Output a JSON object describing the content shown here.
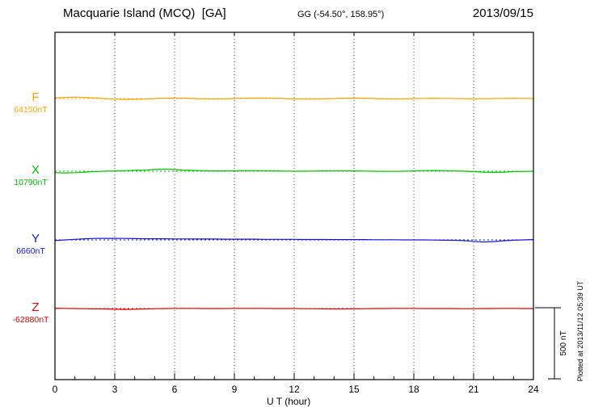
{
  "header": {
    "title": "Macquarie Island (MCQ)  [GA]",
    "coords": "GG (-54.50°, 158.95°)",
    "date": "2013/09/15"
  },
  "axis": {
    "xlabel": "U T (hour)"
  },
  "scale_bar": {
    "label": "500 nT",
    "span_nT": 500
  },
  "footer_note": "Plotted at 2013/11/12 05:39 UT",
  "chart_data": {
    "type": "line",
    "title": "Macquarie Island (MCQ) [GA] magnetogram 2013/09/15",
    "xlabel": "U T (hour)",
    "x_ticks": [
      0,
      3,
      6,
      9,
      12,
      15,
      18,
      21,
      24
    ],
    "x_range": [
      0,
      24
    ],
    "x_step_hours": 0.5,
    "scale_bar_nT": 500,
    "grid": "vertical-dotted",
    "legend_position": "left-of-traces",
    "series": [
      {
        "name": "F",
        "baseline_label": "64150nT",
        "baseline_nT": 64150,
        "color": "#FFA500",
        "deviation_nT": [
          5,
          8,
          10,
          8,
          4,
          0,
          -4,
          -6,
          -5,
          -3,
          0,
          2,
          3,
          2,
          0,
          -2,
          -3,
          -2,
          0,
          2,
          3,
          3,
          2,
          0,
          -2,
          -3,
          -3,
          -2,
          0,
          2,
          3,
          2,
          0,
          -2,
          -3,
          -2,
          0,
          1,
          2,
          1,
          0,
          -1,
          -2,
          -1,
          0,
          1,
          2,
          1,
          0
        ]
      },
      {
        "name": "X",
        "baseline_label": "10790nT",
        "baseline_nT": 10790,
        "color": "#00C000",
        "deviation_nT": [
          -10,
          -12,
          -10,
          -6,
          -2,
          0,
          2,
          4,
          6,
          8,
          12,
          15,
          12,
          8,
          5,
          3,
          2,
          2,
          3,
          4,
          4,
          3,
          2,
          1,
          0,
          0,
          1,
          2,
          3,
          3,
          2,
          1,
          0,
          -1,
          -1,
          0,
          2,
          4,
          5,
          4,
          2,
          0,
          -3,
          -6,
          -8,
          -6,
          -3,
          -1,
          0
        ]
      },
      {
        "name": "Y",
        "baseline_label": "6660nT",
        "baseline_nT": 6660,
        "color": "#1515D0",
        "deviation_nT": [
          -5,
          0,
          4,
          8,
          10,
          11,
          11,
          10,
          9,
          8,
          8,
          8,
          7,
          7,
          6,
          6,
          6,
          5,
          5,
          5,
          5,
          4,
          4,
          4,
          4,
          3,
          3,
          3,
          2,
          2,
          2,
          2,
          1,
          1,
          1,
          0,
          0,
          0,
          -1,
          -2,
          -3,
          -5,
          -10,
          -15,
          -12,
          -6,
          -2,
          0,
          2
        ]
      },
      {
        "name": "Z",
        "baseline_label": "-62880nT",
        "baseline_nT": -62880,
        "color": "#E00000",
        "deviation_nT": [
          2,
          1,
          0,
          -1,
          -2,
          -3,
          -5,
          -6,
          -5,
          -3,
          -1,
          0,
          1,
          1,
          1,
          0,
          0,
          0,
          1,
          1,
          1,
          1,
          0,
          0,
          0,
          -1,
          -1,
          -2,
          -3,
          -3,
          -2,
          -1,
          0,
          0,
          1,
          1,
          1,
          0,
          0,
          0,
          0,
          -1,
          -1,
          0,
          0,
          1,
          1,
          0,
          0
        ]
      }
    ]
  }
}
